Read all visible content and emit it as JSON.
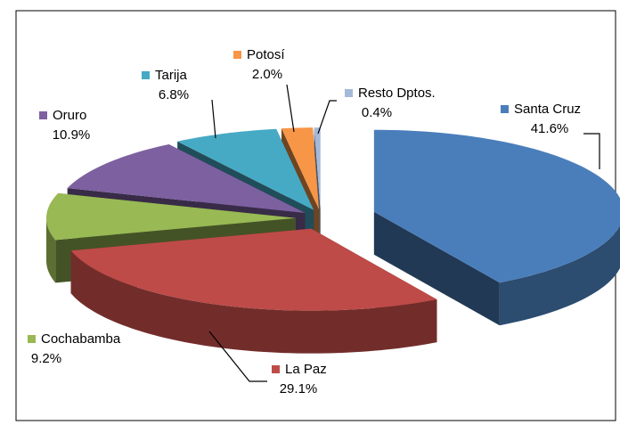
{
  "chart_data": {
    "type": "pie3d",
    "categories": [
      "Santa Cruz",
      "La Paz",
      "Cochabamba",
      "Oruro",
      "Tarija",
      "Potosí",
      "Resto Dptos."
    ],
    "values": [
      41.6,
      29.1,
      9.2,
      10.9,
      6.8,
      2.0,
      0.4
    ],
    "value_labels": [
      "41.6%",
      "29.1%",
      "9.2%",
      "10.9%",
      "6.8%",
      "2.0%",
      "0.4%"
    ],
    "colors": [
      "#4a7ebb",
      "#be4b48",
      "#98b954",
      "#7d60a0",
      "#46aac5",
      "#f79646",
      "#a5b9d9"
    ]
  }
}
